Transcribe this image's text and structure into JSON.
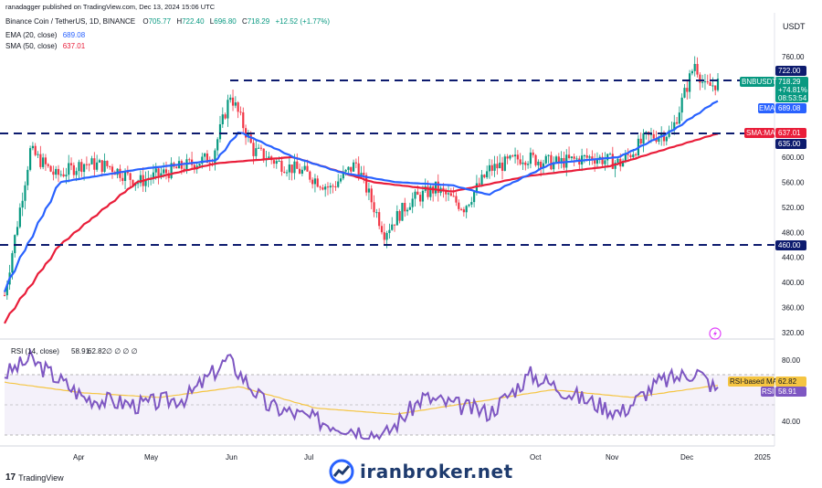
{
  "header": {
    "published": "ranadagger published on TradingView.com, Dec 13, 2024 15:06 UTC",
    "symbol_line": "Binance Coin / TetherUS, 1D, BINANCE",
    "ohlc": {
      "o": "705.77",
      "h": "722.40",
      "l": "696.80",
      "c": "718.29",
      "chg": "+12.52 (+1.77%)"
    },
    "ohlc_labels": {
      "o": "O",
      "h": "H",
      "l": "L",
      "c": "C"
    },
    "ema_line": "EMA (20, close)",
    "ema_value": "689.08",
    "sma_line": "SMA (50, close)",
    "sma_value": "637.01"
  },
  "currency": "USDT",
  "price_axis": {
    "ticks": [
      "760.00",
      "720.00",
      "680.00",
      "640.00",
      "600.00",
      "560.00",
      "520.00",
      "480.00",
      "440.00",
      "400.00",
      "360.00",
      "320.00"
    ]
  },
  "price_badges": {
    "level_722": "722.00",
    "symbol": "BNBUSDT",
    "last": "718.29",
    "pct": "+74.81%",
    "countdown": "08:53:54",
    "ema_label": "EMA",
    "ema_value": "689.08",
    "sma_label": "SMA:MA",
    "sma_value": "637.01",
    "level_635": "635.00",
    "level_460": "460.00"
  },
  "time_axis": {
    "labels": [
      "Apr",
      "May",
      "Jun",
      "Jul",
      "Oct",
      "Nov",
      "Dec",
      "2025"
    ]
  },
  "rsi": {
    "title": "RSI (14, close)",
    "rsi_value": "58.91",
    "ma_value": "62.82",
    "extras": "∅ ∅ ∅ ∅",
    "ticks": [
      "80.00",
      "40.00"
    ],
    "ma_badge_label": "RSI-based MA",
    "rsi_badge_label": "RSI"
  },
  "footer": {
    "brand": "TradingView"
  },
  "watermark": {
    "text": "iranbroker.net"
  },
  "colors": {
    "ema": "#2962ff",
    "sma": "#e91e3a",
    "up": "#089981",
    "down": "#f23645",
    "rsi": "#7e57c2",
    "rsi_ma": "#f5c542",
    "level": "#0d1b6e"
  },
  "chart_data": [
    {
      "type": "candlestick",
      "title": "Binance Coin / TetherUS, 1D, BINANCE",
      "xlabel": "",
      "ylabel": "",
      "ylim": [
        320,
        790
      ],
      "x_range": [
        "2024-03-10",
        "2025-01-03"
      ],
      "x_ticks": [
        "Apr",
        "May",
        "Jun",
        "Jul",
        "Oct",
        "Nov",
        "Dec",
        "2025"
      ],
      "horizontal_levels": [
        722,
        635,
        460
      ],
      "series": [
        {
          "name": "BNBUSDT",
          "type": "close",
          "x": [
            "2024-03-10",
            "2024-03-20",
            "2024-03-30",
            "2024-04-10",
            "2024-04-20",
            "2024-05-01",
            "2024-05-15",
            "2024-05-30",
            "2024-06-06",
            "2024-06-15",
            "2024-06-25",
            "2024-07-05",
            "2024-07-15",
            "2024-07-25",
            "2024-08-05",
            "2024-08-15",
            "2024-08-25",
            "2024-09-05",
            "2024-09-15",
            "2024-09-28",
            "2024-10-10",
            "2024-10-25",
            "2024-11-05",
            "2024-11-15",
            "2024-11-25",
            "2024-12-04",
            "2024-12-08",
            "2024-12-13"
          ],
          "values": [
            380,
            610,
            570,
            590,
            585,
            560,
            580,
            600,
            700,
            610,
            590,
            575,
            550,
            590,
            480,
            530,
            550,
            520,
            580,
            600,
            590,
            600,
            590,
            630,
            640,
            750,
            710,
            718.29
          ]
        },
        {
          "name": "EMA (20, close)",
          "x": [
            "2024-03-10",
            "2024-04-01",
            "2024-05-01",
            "2024-06-01",
            "2024-06-10",
            "2024-07-01",
            "2024-07-20",
            "2024-08-10",
            "2024-09-01",
            "2024-09-15",
            "2024-10-10",
            "2024-11-05",
            "2024-11-25",
            "2024-12-13"
          ],
          "values": [
            385,
            560,
            580,
            595,
            640,
            600,
            575,
            560,
            555,
            540,
            590,
            600,
            640,
            689.08
          ]
        },
        {
          "name": "SMA (50, close)",
          "x": [
            "2024-03-10",
            "2024-04-01",
            "2024-05-01",
            "2024-06-01",
            "2024-07-01",
            "2024-08-01",
            "2024-09-01",
            "2024-10-01",
            "2024-11-01",
            "2024-12-13"
          ],
          "values": [
            335,
            460,
            560,
            590,
            600,
            560,
            545,
            570,
            585,
            637.01
          ]
        }
      ]
    },
    {
      "type": "line",
      "title": "RSI (14, close)",
      "xlabel": "",
      "ylabel": "",
      "ylim": [
        25,
        90
      ],
      "y_ticks": [
        80,
        40
      ],
      "series": [
        {
          "name": "RSI",
          "x": [
            "2024-03-10",
            "2024-03-20",
            "2024-04-10",
            "2024-05-01",
            "2024-05-20",
            "2024-06-05",
            "2024-06-20",
            "2024-07-10",
            "2024-08-05",
            "2024-08-20",
            "2024-09-15",
            "2024-10-01",
            "2024-10-20",
            "2024-11-05",
            "2024-11-20",
            "2024-12-05",
            "2024-12-13"
          ],
          "values": [
            70,
            80,
            55,
            50,
            55,
            80,
            50,
            40,
            30,
            55,
            45,
            70,
            55,
            45,
            65,
            72,
            58.91
          ]
        },
        {
          "name": "RSI-based MA",
          "x": [
            "2024-03-10",
            "2024-04-10",
            "2024-05-10",
            "2024-06-10",
            "2024-07-10",
            "2024-08-10",
            "2024-09-10",
            "2024-10-10",
            "2024-11-10",
            "2024-12-13"
          ],
          "values": [
            65,
            58,
            55,
            62,
            48,
            44,
            52,
            60,
            55,
            62.82
          ]
        }
      ]
    }
  ]
}
